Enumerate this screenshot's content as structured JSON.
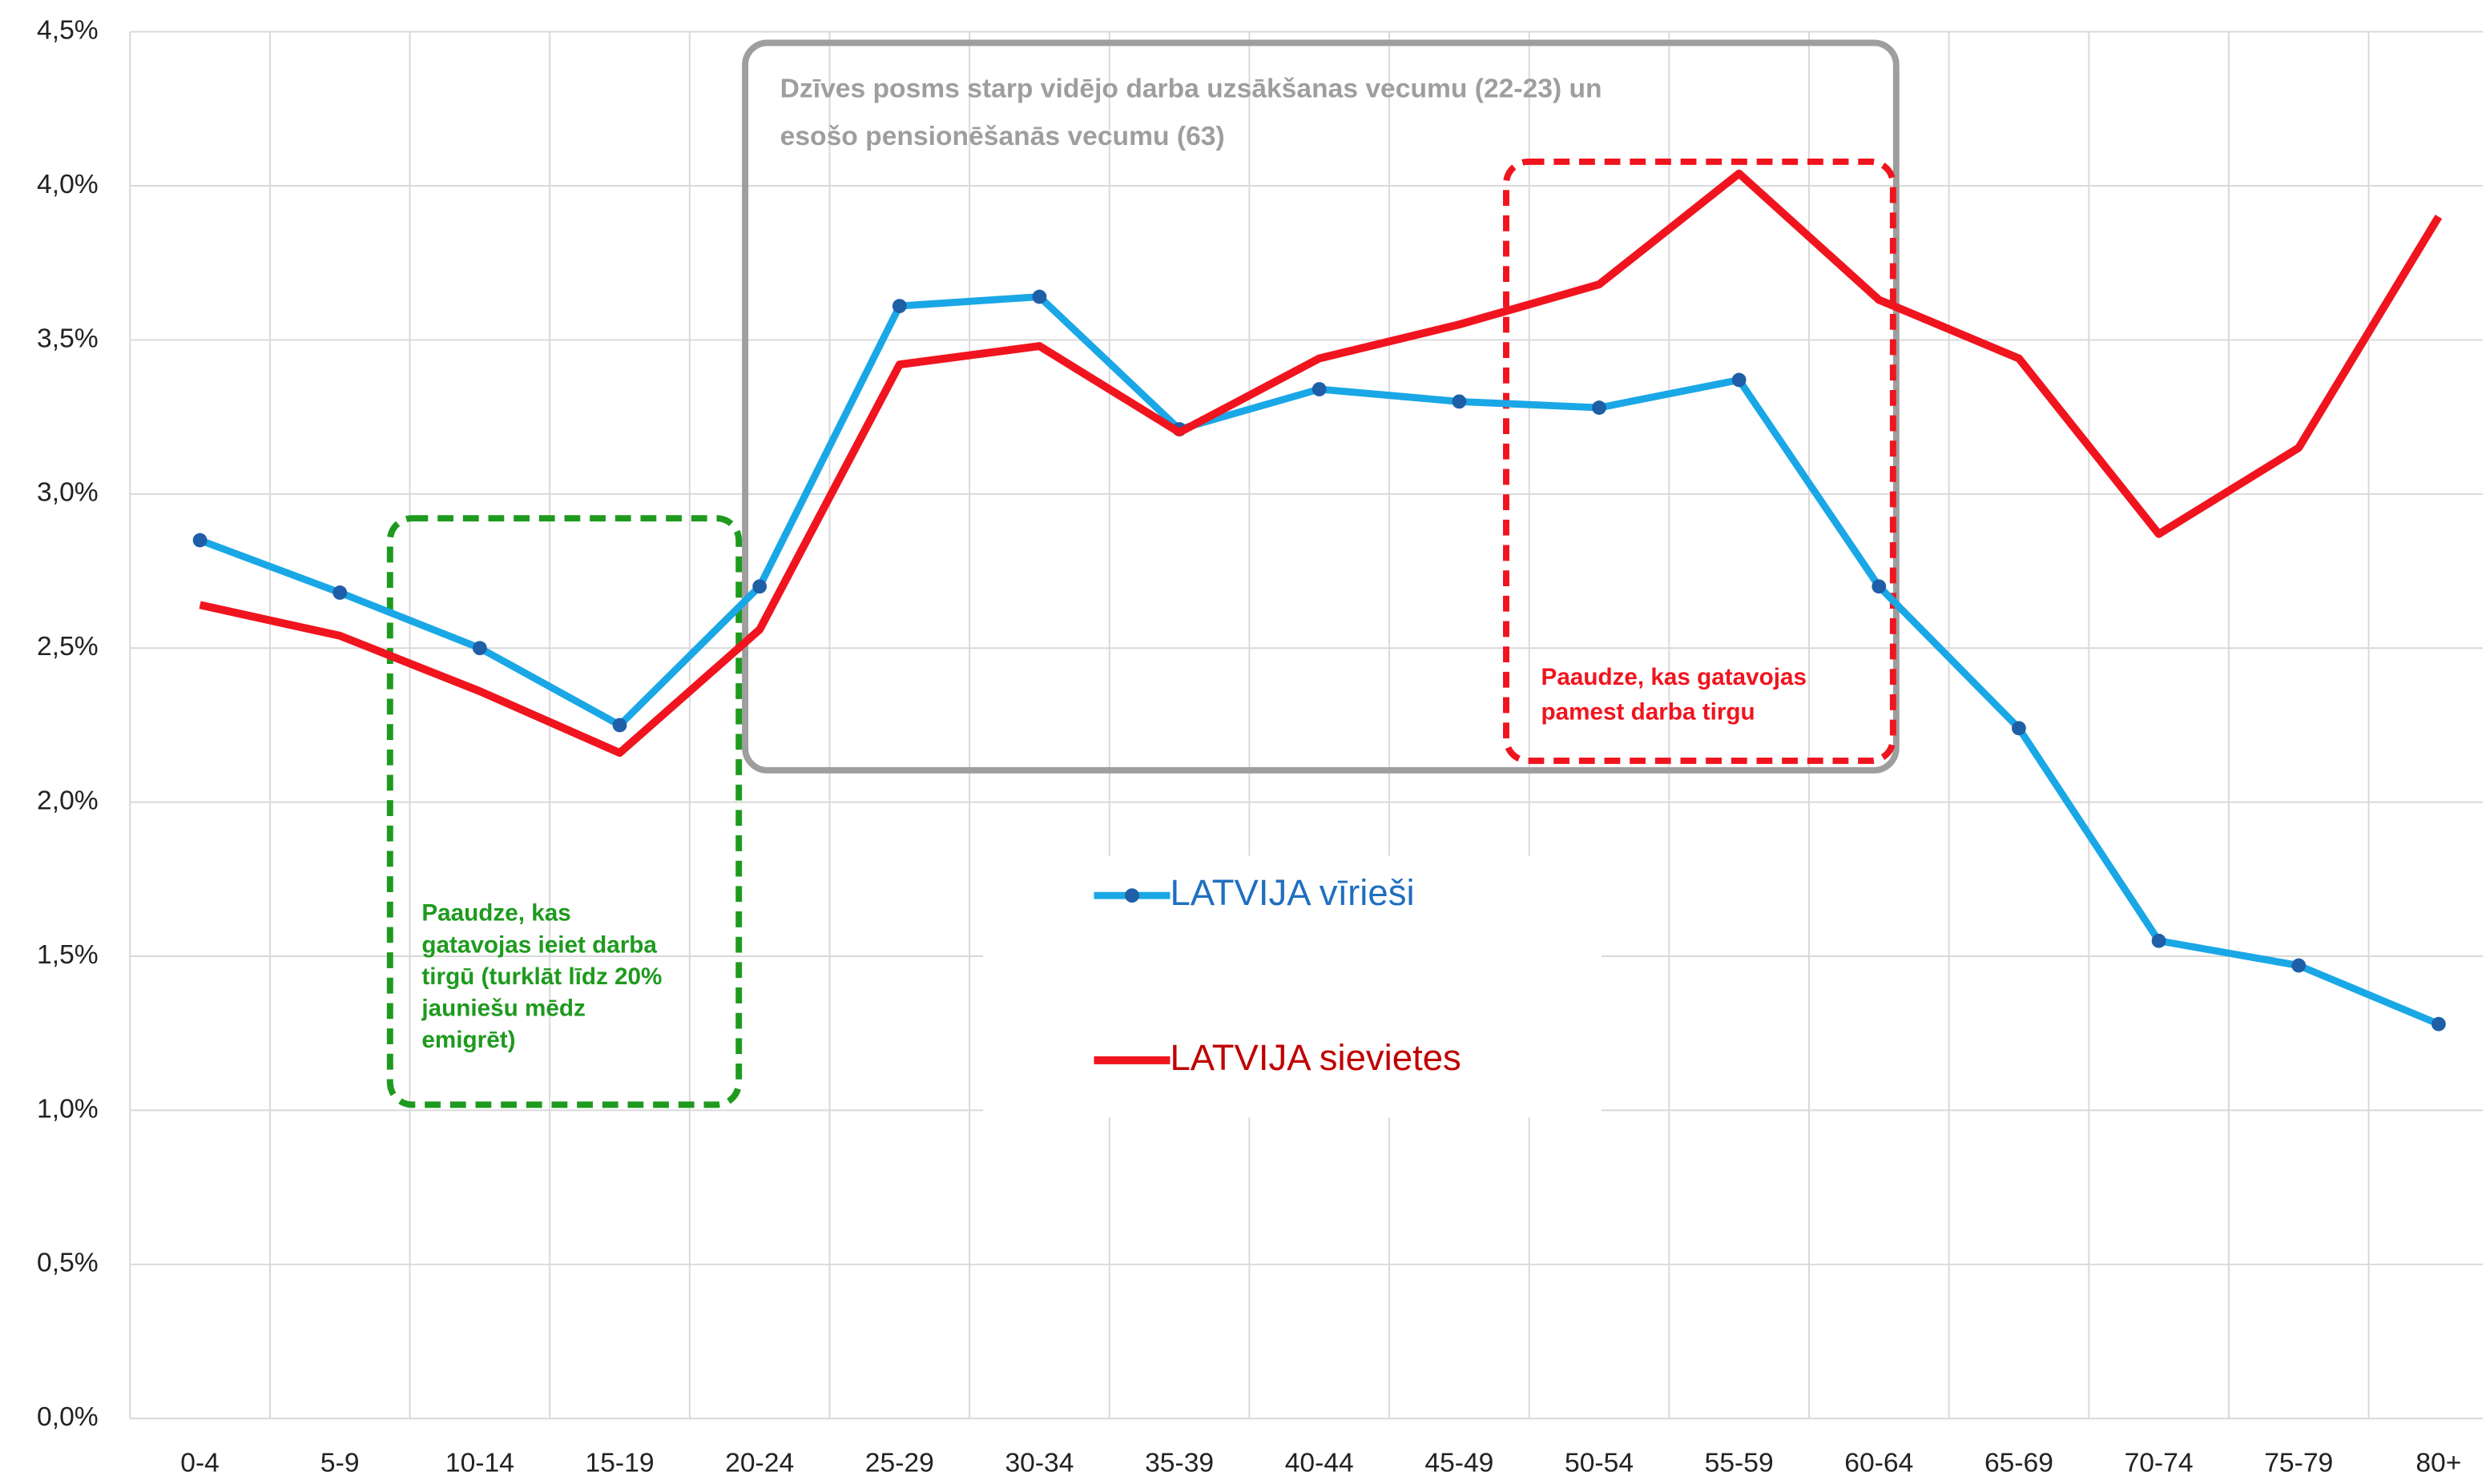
{
  "chart_data": {
    "type": "line",
    "categories": [
      "0-4",
      "5-9",
      "10-14",
      "15-19",
      "20-24",
      "25-29",
      "30-34",
      "35-39",
      "40-44",
      "45-49",
      "50-54",
      "55-59",
      "60-64",
      "65-69",
      "70-74",
      "75-79",
      "80+"
    ],
    "series": [
      {
        "name": "LATVIJA vīrieši",
        "color": "#1aa7e6",
        "markers": true,
        "values": [
          2.85,
          2.68,
          2.5,
          2.25,
          2.7,
          3.61,
          3.64,
          3.21,
          3.34,
          3.3,
          3.28,
          3.37,
          2.7,
          2.24,
          1.55,
          1.47,
          1.28
        ]
      },
      {
        "name": "LATVIJA sievietes",
        "color": "#f0141e",
        "markers": false,
        "values": [
          2.64,
          2.54,
          2.36,
          2.16,
          2.56,
          3.42,
          3.48,
          3.2,
          3.44,
          3.55,
          3.68,
          4.04,
          3.63,
          3.44,
          2.87,
          3.15,
          3.9
        ]
      }
    ],
    "ylim": [
      0,
      4.5
    ],
    "yticks": [
      {
        "value": 0,
        "label": "0,0%"
      },
      {
        "value": 0.5,
        "label": "0,5%"
      },
      {
        "value": 1,
        "label": "1,0%"
      },
      {
        "value": 1.5,
        "label": "1,5%"
      },
      {
        "value": 2,
        "label": "2,0%"
      },
      {
        "value": 2.5,
        "label": "2,5%"
      },
      {
        "value": 3,
        "label": "3,0%"
      },
      {
        "value": 3.5,
        "label": "3,5%"
      },
      {
        "value": 4,
        "label": "4,0%"
      },
      {
        "value": 4.5,
        "label": "4,5%"
      }
    ],
    "grid": true,
    "annotations": [
      {
        "lines": [
          "Dzīves posms starp vidējo darba uzsākšanas vecumu (22-23) un",
          "esošo pensionēšanās vecumu (63)"
        ],
        "color": "#9e9e9e"
      },
      {
        "lines": [
          "Paaudze, kas",
          "gatavojas ieiet darba",
          "tirgū (turklāt līdz 20%",
          "jauniešu mēdz",
          "emigrēt)"
        ],
        "color": "#1e9a1e"
      },
      {
        "lines": [
          "Paaudze, kas gatavojas",
          "pamest darba tirgu"
        ],
        "color": "#f0141e"
      }
    ]
  }
}
